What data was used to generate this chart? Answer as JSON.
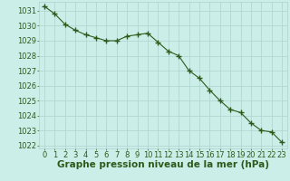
{
  "x": [
    0,
    1,
    2,
    3,
    4,
    5,
    6,
    7,
    8,
    9,
    10,
    11,
    12,
    13,
    14,
    15,
    16,
    17,
    18,
    19,
    20,
    21,
    22,
    23
  ],
  "y": [
    1031.3,
    1030.8,
    1030.1,
    1029.7,
    1029.4,
    1029.2,
    1029.0,
    1029.0,
    1029.3,
    1029.4,
    1029.5,
    1028.9,
    1028.3,
    1028.0,
    1027.0,
    1026.5,
    1025.7,
    1025.0,
    1024.4,
    1024.2,
    1023.5,
    1023.0,
    1022.9,
    1022.2
  ],
  "line_color": "#2d5a1b",
  "marker": "+",
  "marker_size": 4,
  "marker_edge_width": 1.0,
  "line_width": 0.8,
  "bg_color": "#cceee8",
  "grid_color": "#aad4ce",
  "xlabel": "Graphe pression niveau de la mer (hPa)",
  "xlabel_fontsize": 7.5,
  "tick_fontsize": 6.0,
  "ylim": [
    1021.8,
    1031.6
  ],
  "xlim": [
    -0.5,
    23.5
  ],
  "yticks": [
    1022,
    1023,
    1024,
    1025,
    1026,
    1027,
    1028,
    1029,
    1030,
    1031
  ],
  "xticks": [
    0,
    1,
    2,
    3,
    4,
    5,
    6,
    7,
    8,
    9,
    10,
    11,
    12,
    13,
    14,
    15,
    16,
    17,
    18,
    19,
    20,
    21,
    22,
    23
  ]
}
